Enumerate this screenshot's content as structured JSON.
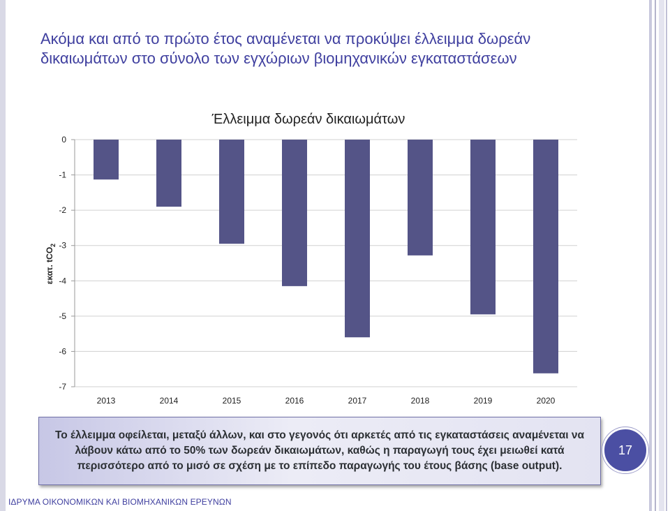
{
  "slide": {
    "title_lines": [
      "Ακόμα και από το πρώτο έτος αναμένεται να προκύψει έλλειμμα δωρεάν",
      "δικαιωμάτων στο σύνολο των εγχώριων βιομηχανικών εγκαταστάσεων"
    ],
    "callout_text": "Το έλλειμμα οφείλεται, μεταξύ άλλων, και στο γεγονός ότι αρκετές από τις εγκαταστάσεις αναμένεται να λάβουν κάτω από το 50% των δωρεάν δικαιωμάτων, καθώς η παραγωγή τους έχει μειωθεί κατά περισσότερο από το μισό σε σχέση με το επίπεδο παραγωγής του έτους βάσης (base output).",
    "page_number": "17",
    "footer": "ΙΔΡΥΜΑ ΟΙΚΟΝΟΜΙΚΩΝ ΚΑΙ ΒΙΟΜΗΧΑΝΙΚΩΝ ΕΡΕΥΝΩΝ"
  },
  "colors": {
    "title": "#3f3f9f",
    "bar": "#545487",
    "grid": "#d0d0d0",
    "badge": "#4b4fa3"
  },
  "chart_data": {
    "type": "bar",
    "title": "Έλλειμμα δωρεάν δικαιωμάτων",
    "ylabel_main": "εκατ. tCO",
    "ylabel_sub": "2",
    "xlabel": "",
    "categories": [
      "2013",
      "2014",
      "2015",
      "2016",
      "2017",
      "2018",
      "2019",
      "2020"
    ],
    "values": [
      -1.13,
      -1.9,
      -2.95,
      -4.15,
      -5.6,
      -3.28,
      -4.95,
      -6.62
    ],
    "ylim": [
      -7,
      0
    ],
    "yticks": [
      0,
      -1,
      -2,
      -3,
      -4,
      -5,
      -6,
      -7
    ],
    "grid": true,
    "legend": "none"
  }
}
